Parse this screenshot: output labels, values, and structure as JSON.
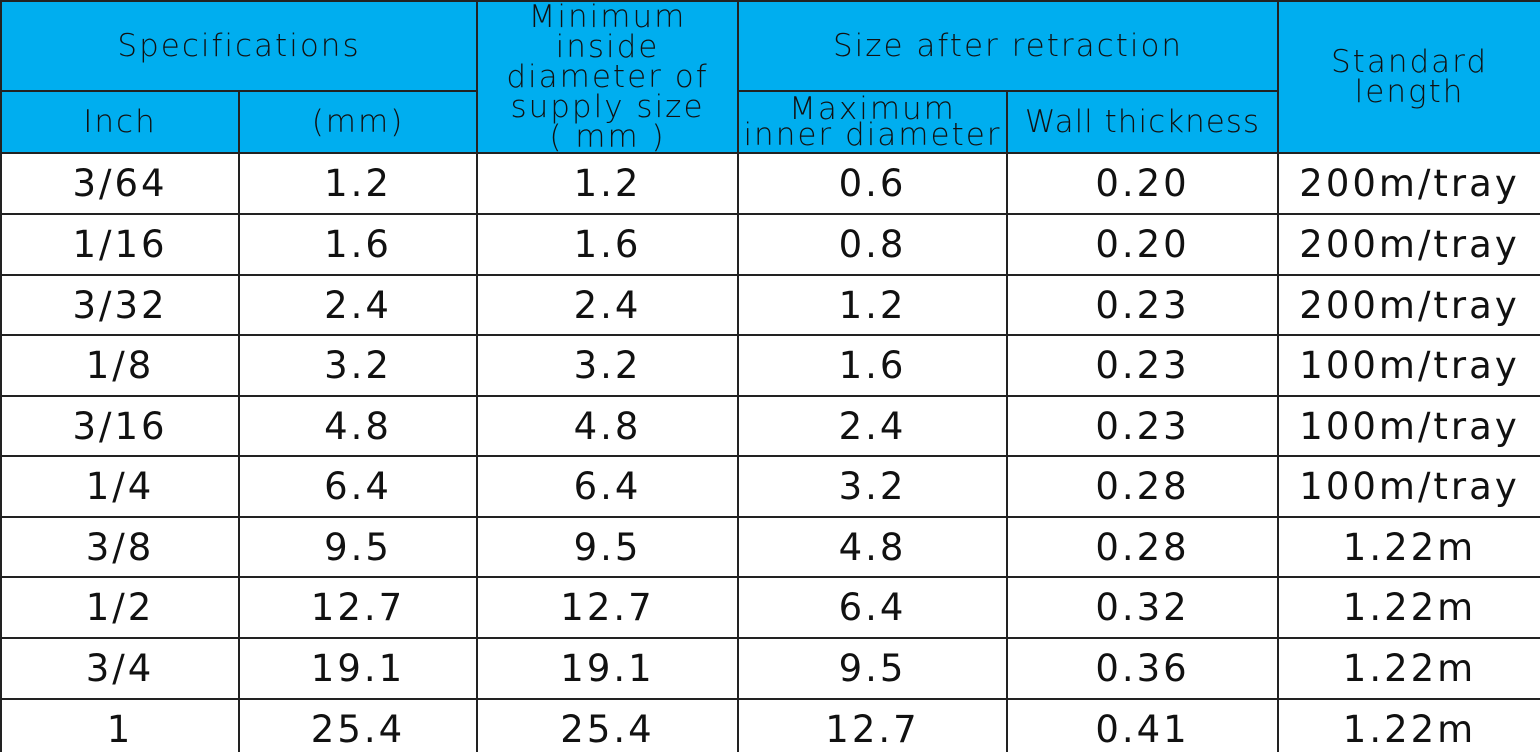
{
  "header": {
    "specifications": "Specifications",
    "inch": "Inch",
    "mm": "(mm)",
    "min_inside_diameter": [
      "Minimum inside",
      "diameter of",
      "supply size",
      "( mm )"
    ],
    "size_after_retraction": "Size after retraction",
    "max_inner_diameter": [
      "Maximum",
      "inner diameter"
    ],
    "wall_thickness": "Wall thickness",
    "standard_length": [
      "Standard",
      "length"
    ]
  },
  "table": {
    "rows": [
      [
        "3/64",
        "1.2",
        "1.2",
        "0.6",
        "0.20",
        "200m/tray"
      ],
      [
        "1/16",
        "1.6",
        "1.6",
        "0.8",
        "0.20",
        "200m/tray"
      ],
      [
        "3/32",
        "2.4",
        "2.4",
        "1.2",
        "0.23",
        "200m/tray"
      ],
      [
        "1/8",
        "3.2",
        "3.2",
        "1.6",
        "0.23",
        "100m/tray"
      ],
      [
        "3/16",
        "4.8",
        "4.8",
        "2.4",
        "0.23",
        "100m/tray"
      ],
      [
        "1/4",
        "6.4",
        "6.4",
        "3.2",
        "0.28",
        "100m/tray"
      ],
      [
        "3/8",
        "9.5",
        "9.5",
        "4.8",
        "0.28",
        "1.22m"
      ],
      [
        "1/2",
        "12.7",
        "12.7",
        "6.4",
        "0.32",
        "1.22m"
      ],
      [
        "3/4",
        "19.1",
        "19.1",
        "9.5",
        "0.36",
        "1.22m"
      ],
      [
        "1",
        "25.4",
        "25.4",
        "12.7",
        "0.41",
        "1.22m"
      ]
    ]
  }
}
